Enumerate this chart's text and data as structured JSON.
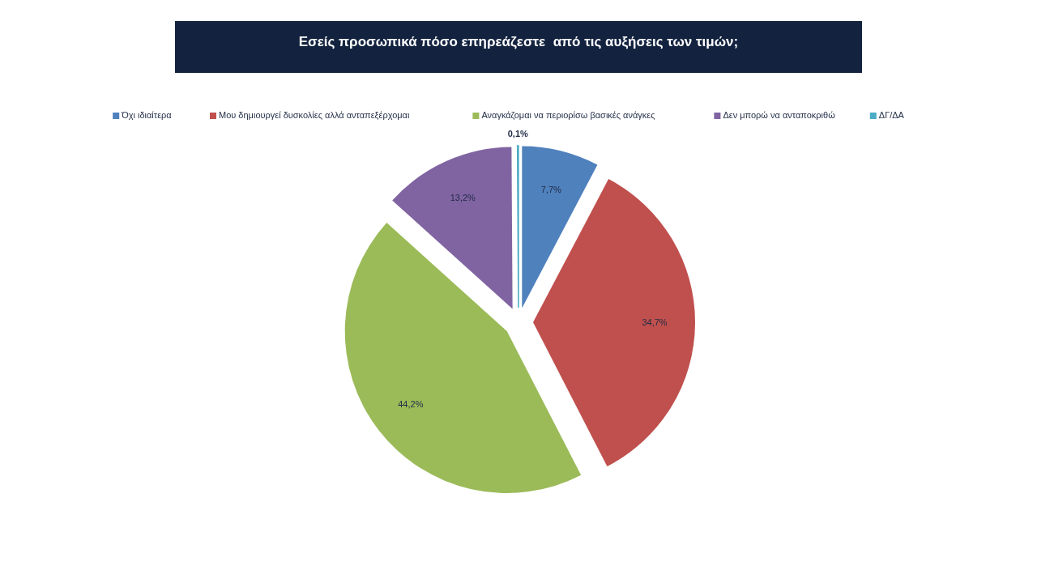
{
  "chart_data": {
    "type": "pie",
    "title": "Εσείς προσωπικά πόσο επηρεάζεστε  από τις αυξήσεις των τιμών;",
    "categories": [
      "Όχι ιδιαίτερα",
      "Μου δημιουργεί δυσκολίες αλλά ανταπεξέρχομαι",
      "Αναγκάζομαι να περιορίσω βασικές ανάγκες",
      "Δεν μπορώ να ανταποκριθώ",
      "ΔΓ/ΔΑ"
    ],
    "values": [
      7.7,
      34.7,
      44.2,
      13.2,
      0.1
    ],
    "value_labels": [
      "7,7%",
      "34,7%",
      "44,2%",
      "13,2%",
      "0,1%"
    ],
    "colors": [
      "#4f81bd",
      "#c0504d",
      "#9bbb59",
      "#8064a2",
      "#4bacc6"
    ],
    "legend": "top"
  }
}
